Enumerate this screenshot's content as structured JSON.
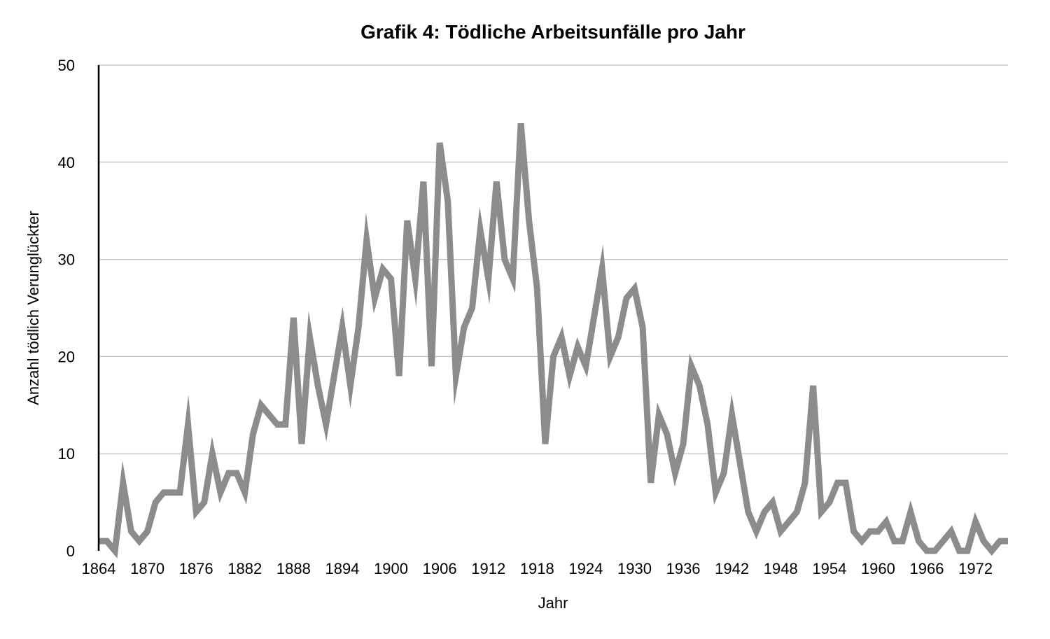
{
  "chart_data": {
    "type": "line",
    "title": "Grafik 4: Tödliche Arbeitsunfälle pro Jahr",
    "xlabel": "Jahr",
    "ylabel": "Anzahl tödlich Verunglückter",
    "x_tick_labels": [
      "1864",
      "1870",
      "1876",
      "1882",
      "1888",
      "1894",
      "1900",
      "1906",
      "1912",
      "1918",
      "1924",
      "1930",
      "1936",
      "1942",
      "1948",
      "1954",
      "1960",
      "1966",
      "1972"
    ],
    "y_tick_labels": [
      "0",
      "10",
      "20",
      "30",
      "40",
      "50"
    ],
    "xlim": [
      1864,
      1976
    ],
    "ylim": [
      0,
      50
    ],
    "grid": true,
    "legend": "none",
    "series_color": "#8c8c8c",
    "x": [
      1864,
      1865,
      1866,
      1867,
      1868,
      1869,
      1870,
      1871,
      1872,
      1873,
      1874,
      1875,
      1876,
      1877,
      1878,
      1879,
      1880,
      1881,
      1882,
      1883,
      1884,
      1885,
      1886,
      1887,
      1888,
      1889,
      1890,
      1891,
      1892,
      1893,
      1894,
      1895,
      1896,
      1897,
      1898,
      1899,
      1900,
      1901,
      1902,
      1903,
      1904,
      1905,
      1906,
      1907,
      1908,
      1909,
      1910,
      1911,
      1912,
      1913,
      1914,
      1915,
      1916,
      1917,
      1918,
      1919,
      1920,
      1921,
      1922,
      1923,
      1924,
      1925,
      1926,
      1927,
      1928,
      1929,
      1930,
      1931,
      1932,
      1933,
      1934,
      1935,
      1936,
      1937,
      1938,
      1939,
      1940,
      1941,
      1942,
      1943,
      1944,
      1945,
      1946,
      1947,
      1948,
      1949,
      1950,
      1951,
      1952,
      1953,
      1954,
      1955,
      1956,
      1957,
      1958,
      1959,
      1960,
      1961,
      1962,
      1963,
      1964,
      1965,
      1966,
      1967,
      1968,
      1969,
      1970,
      1971,
      1972,
      1973,
      1974,
      1975,
      1976
    ],
    "values": [
      1,
      1,
      0,
      7,
      2,
      1,
      2,
      5,
      6,
      6,
      6,
      13,
      4,
      5,
      10,
      6,
      8,
      8,
      6,
      12,
      15,
      14,
      13,
      13,
      24,
      11,
      22,
      17,
      13,
      18,
      23,
      17,
      23,
      32,
      26,
      29,
      28,
      18,
      34,
      28,
      38,
      19,
      42,
      36,
      18,
      23,
      25,
      33,
      28,
      38,
      30,
      28,
      44,
      34,
      27,
      11,
      20,
      22,
      18,
      21,
      19,
      24,
      29,
      20,
      22,
      26,
      27,
      23,
      7,
      14,
      12,
      8,
      11,
      19,
      17,
      13,
      6,
      8,
      14,
      9,
      4,
      2,
      4,
      5,
      2,
      3,
      4,
      7,
      17,
      4,
      5,
      7,
      7,
      2,
      1,
      2,
      2,
      3,
      1,
      1,
      4,
      1,
      0,
      0,
      1,
      2,
      0,
      0,
      3,
      1,
      0,
      1,
      1
    ]
  }
}
